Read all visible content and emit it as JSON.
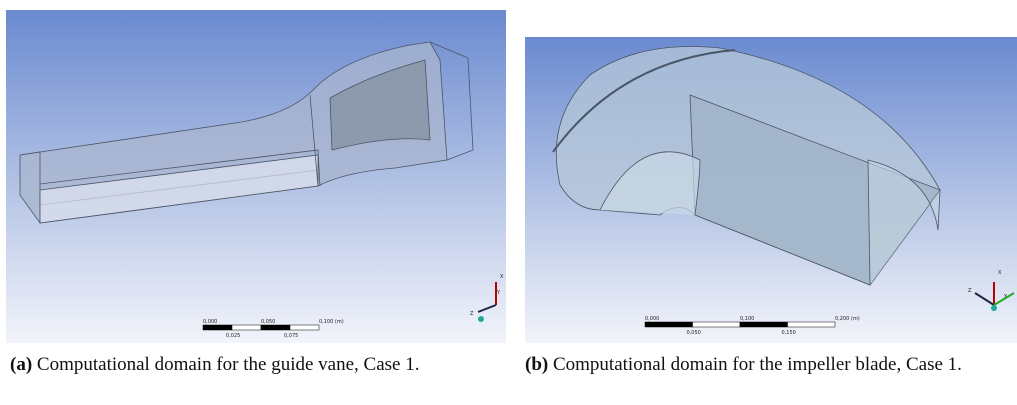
{
  "figures": [
    {
      "label": "(a)",
      "caption": "Computational domain for the guide vane, Case 1.",
      "scale_top": [
        "0,000",
        "0,050",
        "0,100 (m)"
      ],
      "scale_bottom": [
        "0,025",
        "0,075"
      ],
      "triad": [
        "X",
        "Y",
        "Z"
      ]
    },
    {
      "label": "(b)",
      "caption": "Computational domain for the impeller blade, Case 1.",
      "scale_top": [
        "0,000",
        "0,100",
        "0,200 (m)"
      ],
      "scale_bottom": [
        "0,050",
        "0,150"
      ],
      "triad": [
        "X",
        "Y",
        "Z"
      ]
    }
  ]
}
